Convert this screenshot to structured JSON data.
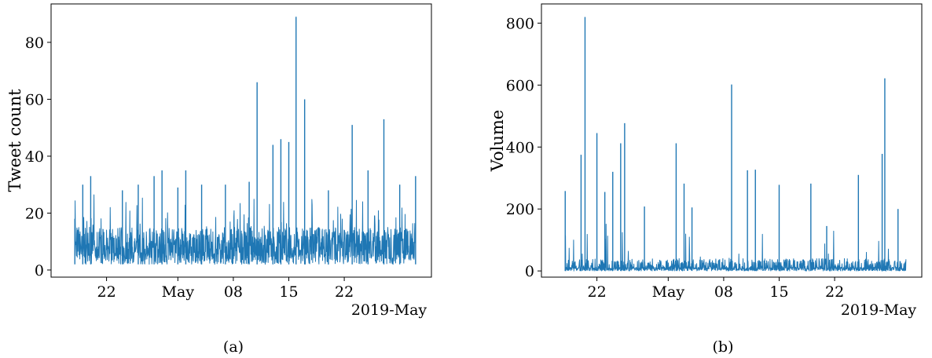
{
  "chart_data": [
    {
      "type": "line",
      "panel": "(a)",
      "ylabel": "Tweet count",
      "xlabel": "",
      "x_offset_label": "2019-May",
      "ylim": [
        -2.5,
        93.5
      ],
      "xlim": [
        "2019-04-15",
        "2019-06-02"
      ],
      "yticks": [
        0,
        20,
        40,
        60,
        80
      ],
      "xticks": [
        {
          "date": "2019-04-22",
          "label": "22"
        },
        {
          "date": "2019-05-01",
          "label": "May"
        },
        {
          "date": "2019-05-08",
          "label": "08"
        },
        {
          "date": "2019-05-15",
          "label": "15"
        },
        {
          "date": "2019-05-22",
          "label": "22"
        }
      ],
      "color": "#1f77b4",
      "start": "2019-04-18",
      "end": "2019-05-31",
      "baseline_low": 2,
      "baseline_high": 15,
      "series": [
        {
          "peaks": [
            {
              "date": "2019-04-18",
              "value": 18
            },
            {
              "date": "2019-04-19",
              "value": 30
            },
            {
              "date": "2019-04-20",
              "value": 33
            },
            {
              "date": "2019-04-24",
              "value": 28
            },
            {
              "date": "2019-04-26",
              "value": 30
            },
            {
              "date": "2019-04-28",
              "value": 33
            },
            {
              "date": "2019-04-29",
              "value": 35
            },
            {
              "date": "2019-05-01",
              "value": 29
            },
            {
              "date": "2019-05-02",
              "value": 35
            },
            {
              "date": "2019-05-04",
              "value": 30
            },
            {
              "date": "2019-05-07",
              "value": 30
            },
            {
              "date": "2019-05-10",
              "value": 31
            },
            {
              "date": "2019-05-11",
              "value": 66
            },
            {
              "date": "2019-05-13",
              "value": 44
            },
            {
              "date": "2019-05-14",
              "value": 46
            },
            {
              "date": "2019-05-15",
              "value": 45
            },
            {
              "date": "2019-05-15 22:00",
              "value": 89
            },
            {
              "date": "2019-05-17",
              "value": 60
            },
            {
              "date": "2019-05-20",
              "value": 28
            },
            {
              "date": "2019-05-23",
              "value": 51
            },
            {
              "date": "2019-05-25",
              "value": 35
            },
            {
              "date": "2019-05-27",
              "value": 53
            },
            {
              "date": "2019-05-29",
              "value": 30
            },
            {
              "date": "2019-05-31",
              "value": 33
            }
          ]
        }
      ]
    },
    {
      "type": "line",
      "panel": "(b)",
      "ylabel": "Volume",
      "xlabel": "",
      "x_offset_label": "2019-May",
      "ylim": [
        -20,
        862
      ],
      "xlim": [
        "2019-04-15",
        "2019-06-02"
      ],
      "yticks": [
        0,
        200,
        400,
        600,
        800
      ],
      "xticks": [
        {
          "date": "2019-04-22",
          "label": "22"
        },
        {
          "date": "2019-05-01",
          "label": "May"
        },
        {
          "date": "2019-05-08",
          "label": "08"
        },
        {
          "date": "2019-05-15",
          "label": "15"
        },
        {
          "date": "2019-05-22",
          "label": "22"
        }
      ],
      "color": "#1f77b4",
      "start": "2019-04-18",
      "end": "2019-05-31",
      "baseline_low": 0,
      "baseline_high": 40,
      "series": [
        {
          "peaks": [
            {
              "date": "2019-04-18",
              "value": 258
            },
            {
              "date": "2019-04-20",
              "value": 375
            },
            {
              "date": "2019-04-20 12:00",
              "value": 820
            },
            {
              "date": "2019-04-22",
              "value": 445
            },
            {
              "date": "2019-04-23",
              "value": 255
            },
            {
              "date": "2019-04-24",
              "value": 320
            },
            {
              "date": "2019-04-25",
              "value": 412
            },
            {
              "date": "2019-04-25 12:00",
              "value": 477
            },
            {
              "date": "2019-04-28",
              "value": 208
            },
            {
              "date": "2019-05-02",
              "value": 412
            },
            {
              "date": "2019-05-03",
              "value": 282
            },
            {
              "date": "2019-05-04",
              "value": 205
            },
            {
              "date": "2019-05-09",
              "value": 602
            },
            {
              "date": "2019-05-11",
              "value": 325
            },
            {
              "date": "2019-05-12",
              "value": 327
            },
            {
              "date": "2019-05-15",
              "value": 278
            },
            {
              "date": "2019-05-19",
              "value": 282
            },
            {
              "date": "2019-05-21",
              "value": 145
            },
            {
              "date": "2019-05-25",
              "value": 310
            },
            {
              "date": "2019-05-28",
              "value": 378
            },
            {
              "date": "2019-05-28 08:00",
              "value": 622
            },
            {
              "date": "2019-05-30",
              "value": 200
            }
          ]
        }
      ]
    }
  ]
}
